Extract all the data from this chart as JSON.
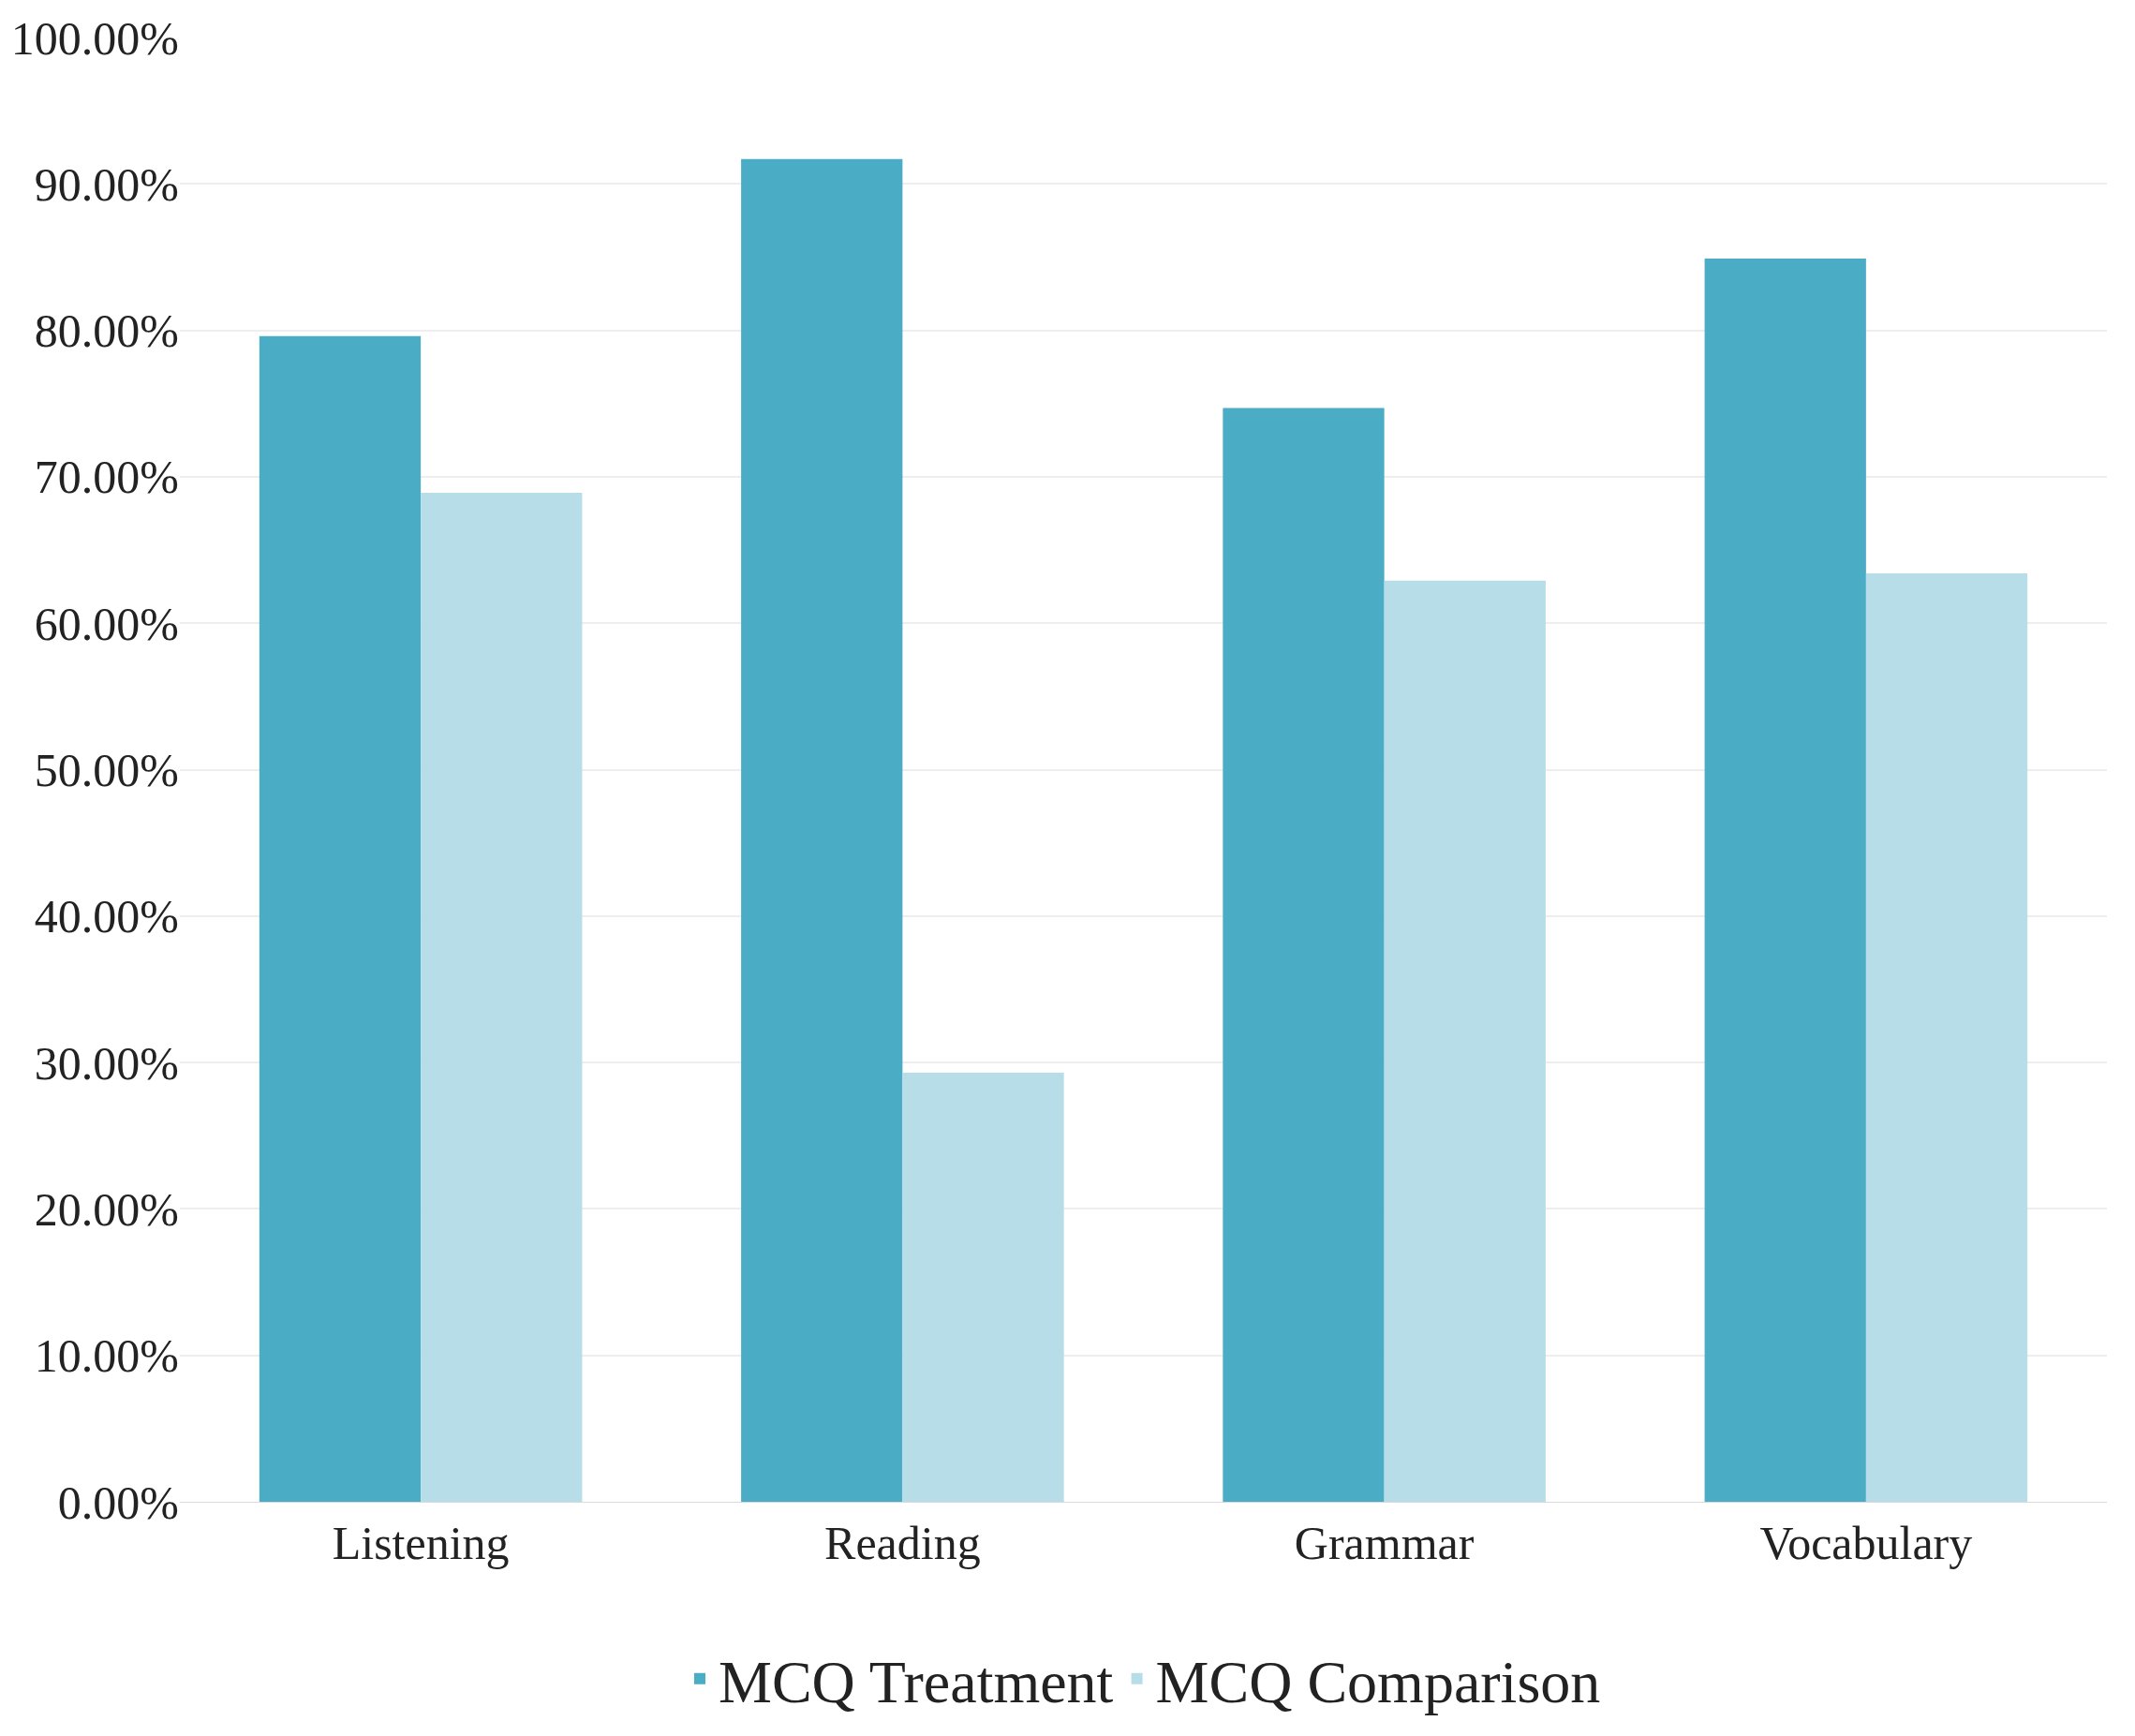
{
  "chart_data": {
    "type": "bar",
    "categories": [
      "Listening",
      "Reading",
      "Grammar",
      "Vocabulary"
    ],
    "series": [
      {
        "name": "MCQ Treatment",
        "color": "#4bacc6",
        "values": [
          79.6,
          91.7,
          74.7,
          84.9
        ]
      },
      {
        "name": "MCQ Comparison",
        "color": "#b7dde8",
        "values": [
          68.9,
          29.3,
          62.9,
          63.4
        ]
      }
    ],
    "ylim": [
      0,
      100
    ],
    "yticks": [
      {
        "value": 0,
        "label": "0.00%"
      },
      {
        "value": 10,
        "label": "10.00%"
      },
      {
        "value": 20,
        "label": "20.00%"
      },
      {
        "value": 30,
        "label": "30.00%"
      },
      {
        "value": 40,
        "label": "40.00%"
      },
      {
        "value": 50,
        "label": "50.00%"
      },
      {
        "value": 60,
        "label": "60.00%"
      },
      {
        "value": 70,
        "label": "70.00%"
      },
      {
        "value": 80,
        "label": "80.00%"
      },
      {
        "value": 90,
        "label": "90.00%"
      },
      {
        "value": 100,
        "label": "100.00%"
      }
    ],
    "grid": "y",
    "legend": "bottom"
  }
}
